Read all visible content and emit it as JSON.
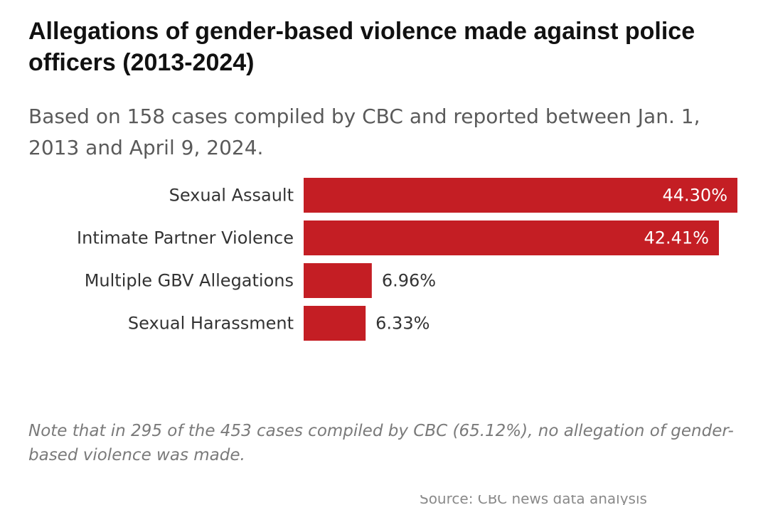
{
  "header": {
    "title": "Allegations of gender-based violence made against police officers (2013-2024)",
    "subtitle": "Based on 158 cases compiled by CBC and reported between Jan. 1, 2013 and April 9, 2024."
  },
  "footer": {
    "note": "Note that in 295 of the 453 cases compiled by CBC (65.12%), no allegation of gender-based violence was made.",
    "source": "Source: CBC news data analysis"
  },
  "colors": {
    "bar": "#c41e24"
  },
  "chart_data": {
    "type": "bar",
    "orientation": "horizontal",
    "title": "Allegations of gender-based violence made against police officers (2013-2024)",
    "subtitle": "Based on 158 cases compiled by CBC and reported between Jan. 1, 2013 and April 9, 2024.",
    "categories": [
      "Sexual Assault",
      "Intimate Partner Violence",
      "Multiple GBV Allegations",
      "Sexual Harassment"
    ],
    "values": [
      44.3,
      42.41,
      6.96,
      6.33
    ],
    "value_labels": [
      "44.30%",
      "42.41%",
      "6.96%",
      "6.33%"
    ],
    "xlabel": "",
    "ylabel": "",
    "xlim": [
      0,
      44.3
    ],
    "grid": false,
    "legend": "none"
  }
}
